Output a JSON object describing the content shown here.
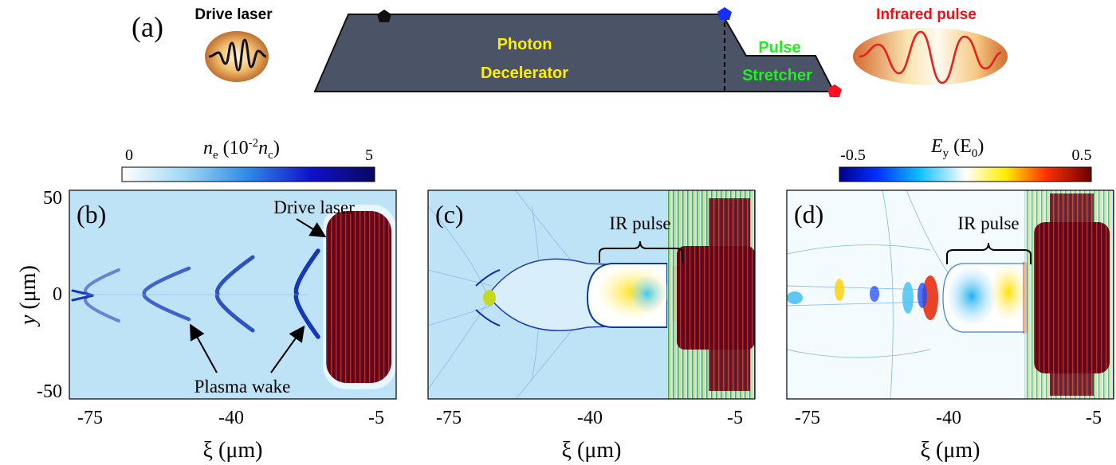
{
  "panel_a": {
    "label": "(a)",
    "drive_laser": "Drive laser",
    "photon_decelerator": [
      "Photon",
      "Decelerator"
    ],
    "pulse_stretcher": [
      "Pulse",
      "Stretcher"
    ],
    "infrared_pulse": "Infrared pulse"
  },
  "colorbar_ne": {
    "title_parts": [
      "n",
      "e",
      " (10",
      "-2",
      "n",
      "c",
      ")"
    ],
    "min": "0",
    "max": "5"
  },
  "colorbar_ey": {
    "title_parts": [
      "E",
      "y",
      " (E",
      "0",
      ")"
    ],
    "min": "-0.5",
    "max": "0.5"
  },
  "axes": {
    "ylabel_var": "y",
    "ylabel_unit": " (μm)",
    "xlabel": "ξ (μm)",
    "yticks": [
      "50",
      "0",
      "-50"
    ],
    "xticks": [
      "-75",
      "-40",
      "-5"
    ]
  },
  "panel_b": {
    "label": "(b)",
    "drive_laser": "Drive laser",
    "plasma_wake": "Plasma wake"
  },
  "panel_c": {
    "label": "(c)",
    "ir_pulse": "IR pulse"
  },
  "panel_d": {
    "label": "(d)",
    "ir_pulse": "IR pulse"
  },
  "colors": {
    "device": "#4a5466",
    "photon_text": "#ffee00",
    "stretcher_text": "#22ee22",
    "infrared_text": "#ee1111",
    "plasma_bg": "#bfe3f6",
    "wake": "#1030b0",
    "dark_red": "#7a0000"
  }
}
